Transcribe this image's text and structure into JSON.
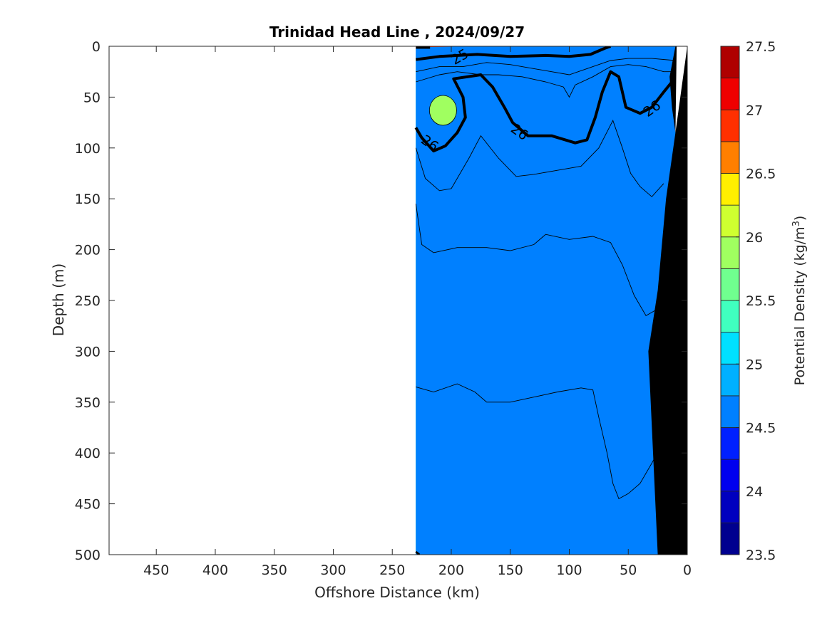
{
  "chart_data": {
    "type": "heatmap",
    "subtype": "filled-contour section",
    "title": "Trinidad Head Line , 2024/09/27",
    "xlabel": "Offshore Distance (km)",
    "ylabel": "Depth (m)",
    "xlim": [
      490,
      0
    ],
    "ylim": [
      0,
      500
    ],
    "x_direction": "reversed",
    "y_direction": "reversed",
    "x_ticks": [
      "450",
      "400",
      "350",
      "300",
      "250",
      "200",
      "150",
      "100",
      "50",
      "0"
    ],
    "y_ticks": [
      "0",
      "50",
      "100",
      "150",
      "200",
      "250",
      "300",
      "350",
      "400",
      "450",
      "500"
    ],
    "colorbar": {
      "label": "Potential Density (kg/m³)",
      "label_main": "Potential Density (kg/m",
      "label_sup": "3",
      "label_end": ")",
      "range": [
        23.5,
        27.5
      ],
      "step": 0.25,
      "ticks": [
        "27.5",
        "27",
        "26.5",
        "26",
        "25.5",
        "25",
        "24.5",
        "24",
        "23.5"
      ],
      "colormap": "jet",
      "colors": [
        "#00008f",
        "#0000bf",
        "#0000ef",
        "#0020ff",
        "#0050ff",
        "#0080ff",
        "#00b0ff",
        "#00e0ff",
        "#40ffbf",
        "#70ff8f",
        "#a0ff60",
        "#cfff30",
        "#ffef00",
        "#ffaf00",
        "#ff7f00",
        "#ff3000",
        "#ef0000",
        "#af0000"
      ]
    },
    "data_extent_km": [
      230,
      0
    ],
    "layers": [
      {
        "level": 27.0,
        "color": "#ff3000",
        "top_depth": [
          [
            230,
            335
          ],
          [
            215,
            340
          ],
          [
            195,
            332
          ],
          [
            180,
            340
          ],
          [
            170,
            350
          ],
          [
            150,
            350
          ],
          [
            130,
            345
          ],
          [
            110,
            340
          ],
          [
            90,
            336
          ],
          [
            80,
            338
          ],
          [
            75,
            365
          ],
          [
            68,
            400
          ],
          [
            63,
            430
          ],
          [
            58,
            445
          ],
          [
            50,
            440
          ],
          [
            40,
            430
          ],
          [
            30,
            410
          ],
          [
            23,
            395
          ]
        ]
      },
      {
        "level": 26.75,
        "color": "#ff7f00",
        "top_depth": [
          [
            230,
            155
          ],
          [
            225,
            195
          ],
          [
            215,
            203
          ],
          [
            195,
            198
          ],
          [
            170,
            198
          ],
          [
            150,
            201
          ],
          [
            130,
            195
          ],
          [
            120,
            185
          ],
          [
            100,
            190
          ],
          [
            80,
            187
          ],
          [
            65,
            193
          ],
          [
            55,
            215
          ],
          [
            45,
            245
          ],
          [
            35,
            265
          ],
          [
            20,
            255
          ]
        ]
      },
      {
        "level": 26.5,
        "color": "#ffaf00",
        "top_depth": [
          [
            230,
            100
          ],
          [
            222,
            130
          ],
          [
            210,
            142
          ],
          [
            200,
            140
          ],
          [
            185,
            110
          ],
          [
            175,
            88
          ],
          [
            160,
            110
          ],
          [
            145,
            128
          ],
          [
            130,
            126
          ],
          [
            110,
            122
          ],
          [
            90,
            118
          ],
          [
            75,
            100
          ],
          [
            63,
            73
          ],
          [
            55,
            100
          ],
          [
            48,
            125
          ],
          [
            40,
            138
          ],
          [
            30,
            148
          ],
          [
            20,
            135
          ]
        ]
      },
      {
        "level": 26.25,
        "color": "#ffef00",
        "top_depth": [
          [
            230,
            70
          ],
          [
            215,
            45
          ],
          [
            200,
            30
          ],
          [
            185,
            35
          ],
          [
            170,
            45
          ],
          [
            150,
            70
          ],
          [
            125,
            80
          ],
          [
            100,
            80
          ],
          [
            80,
            75
          ],
          [
            70,
            38
          ],
          [
            62,
            28
          ],
          [
            55,
            45
          ],
          [
            45,
            60
          ],
          [
            35,
            55
          ],
          [
            20,
            40
          ]
        ]
      },
      {
        "level": 26.0,
        "color": "#cfff30",
        "top_depth": [
          [
            230,
            35
          ],
          [
            210,
            28
          ],
          [
            195,
            25
          ],
          [
            175,
            28
          ],
          [
            160,
            28
          ],
          [
            140,
            30
          ],
          [
            120,
            35
          ],
          [
            105,
            40
          ],
          [
            100,
            50
          ],
          [
            95,
            38
          ],
          [
            80,
            30
          ],
          [
            65,
            20
          ],
          [
            50,
            18
          ],
          [
            35,
            20
          ],
          [
            20,
            25
          ],
          [
            10,
            25
          ]
        ]
      },
      {
        "level": 25.75,
        "color": "#a0ff60",
        "top_depth": [
          [
            230,
            25
          ],
          [
            210,
            20
          ],
          [
            190,
            20
          ],
          [
            170,
            16
          ],
          [
            150,
            18
          ],
          [
            130,
            22
          ],
          [
            115,
            25
          ],
          [
            100,
            28
          ],
          [
            85,
            22
          ],
          [
            65,
            14
          ],
          [
            50,
            12
          ],
          [
            30,
            12
          ],
          [
            10,
            14
          ]
        ]
      },
      {
        "level": 25.5,
        "color": "#70ff8f",
        "top_depth": [
          [
            230,
            18
          ],
          [
            200,
            14
          ],
          [
            180,
            11
          ],
          [
            150,
            13
          ],
          [
            120,
            16
          ],
          [
            100,
            18
          ],
          [
            80,
            14
          ],
          [
            60,
            8
          ],
          [
            40,
            5
          ],
          [
            20,
            6
          ],
          [
            10,
            8
          ]
        ]
      },
      {
        "level": 25.25,
        "color": "#40ffbf",
        "top_depth": [
          [
            230,
            12
          ],
          [
            200,
            9
          ],
          [
            170,
            7
          ],
          [
            140,
            8
          ],
          [
            110,
            10
          ],
          [
            90,
            9
          ],
          [
            70,
            4
          ],
          [
            55,
            0
          ],
          [
            10,
            0
          ]
        ]
      },
      {
        "level": 25.0,
        "color": "#00e0ff",
        "top_depth": [
          [
            230,
            7
          ],
          [
            200,
            5
          ],
          [
            170,
            4
          ],
          [
            140,
            5
          ],
          [
            110,
            5
          ],
          [
            90,
            4
          ],
          [
            70,
            1
          ],
          [
            60,
            0
          ]
        ]
      },
      {
        "level": 24.75,
        "color": "#00b0ff",
        "top_depth": [
          [
            230,
            3
          ],
          [
            200,
            2
          ],
          [
            160,
            1
          ],
          [
            120,
            2
          ],
          [
            90,
            1
          ],
          [
            75,
            0
          ]
        ]
      },
      {
        "level": 24.5,
        "color": "#0080ff",
        "top_depth": [
          [
            230,
            1
          ],
          [
            180,
            0
          ],
          [
            130,
            0
          ],
          [
            100,
            0
          ]
        ]
      }
    ],
    "green_pocket": {
      "level": 25.75,
      "color": "#a0ff60",
      "center_km": 207,
      "center_depth": 63
    },
    "contour_lines_thin": [
      [
        [
          230,
          155
        ],
        [
          225,
          195
        ],
        [
          215,
          203
        ],
        [
          195,
          198
        ],
        [
          170,
          198
        ],
        [
          150,
          201
        ],
        [
          130,
          195
        ],
        [
          120,
          185
        ],
        [
          100,
          190
        ],
        [
          80,
          187
        ],
        [
          65,
          193
        ],
        [
          55,
          215
        ],
        [
          45,
          245
        ],
        [
          35,
          265
        ],
        [
          20,
          255
        ]
      ],
      [
        [
          230,
          335
        ],
        [
          215,
          340
        ],
        [
          195,
          332
        ],
        [
          180,
          340
        ],
        [
          170,
          350
        ],
        [
          150,
          350
        ],
        [
          130,
          345
        ],
        [
          110,
          340
        ],
        [
          90,
          336
        ],
        [
          80,
          338
        ],
        [
          75,
          365
        ],
        [
          68,
          400
        ],
        [
          63,
          430
        ],
        [
          58,
          445
        ],
        [
          50,
          440
        ],
        [
          40,
          430
        ],
        [
          30,
          410
        ],
        [
          23,
          395
        ]
      ],
      [
        [
          230,
          100
        ],
        [
          222,
          130
        ],
        [
          210,
          142
        ],
        [
          200,
          140
        ],
        [
          185,
          110
        ],
        [
          175,
          88
        ],
        [
          160,
          110
        ],
        [
          145,
          128
        ],
        [
          130,
          126
        ],
        [
          110,
          122
        ],
        [
          90,
          118
        ],
        [
          75,
          100
        ],
        [
          63,
          73
        ],
        [
          55,
          100
        ],
        [
          48,
          125
        ],
        [
          40,
          138
        ],
        [
          30,
          148
        ],
        [
          20,
          135
        ]
      ],
      [
        [
          230,
          25
        ],
        [
          210,
          20
        ],
        [
          190,
          20
        ],
        [
          170,
          16
        ],
        [
          150,
          18
        ],
        [
          130,
          22
        ],
        [
          115,
          25
        ],
        [
          100,
          28
        ],
        [
          85,
          22
        ],
        [
          65,
          14
        ],
        [
          50,
          12
        ],
        [
          30,
          12
        ],
        [
          10,
          14
        ]
      ],
      [
        [
          230,
          35
        ],
        [
          210,
          28
        ],
        [
          195,
          25
        ],
        [
          175,
          28
        ],
        [
          160,
          28
        ],
        [
          140,
          30
        ],
        [
          120,
          35
        ],
        [
          105,
          40
        ],
        [
          100,
          50
        ],
        [
          95,
          38
        ],
        [
          80,
          30
        ],
        [
          65,
          20
        ],
        [
          50,
          18
        ],
        [
          35,
          20
        ],
        [
          20,
          25
        ],
        [
          10,
          25
        ]
      ]
    ],
    "contour_lines_bold": [
      {
        "label": "26",
        "points": [
          [
            230,
            80
          ],
          [
            225,
            90
          ],
          [
            215,
            103
          ],
          [
            205,
            98
          ],
          [
            195,
            85
          ],
          [
            188,
            70
          ],
          [
            190,
            50
          ],
          [
            198,
            32
          ],
          [
            175,
            28
          ],
          [
            165,
            40
          ],
          [
            155,
            60
          ],
          [
            148,
            75
          ],
          [
            135,
            88
          ],
          [
            115,
            88
          ],
          [
            95,
            95
          ],
          [
            85,
            92
          ],
          [
            78,
            70
          ],
          [
            72,
            45
          ],
          [
            65,
            25
          ],
          [
            58,
            30
          ],
          [
            55,
            45
          ],
          [
            52,
            60
          ],
          [
            40,
            66
          ],
          [
            30,
            60
          ],
          [
            20,
            45
          ],
          [
            13,
            35
          ]
        ]
      },
      {
        "label": "25",
        "points": [
          [
            230,
            13
          ],
          [
            210,
            10
          ],
          [
            178,
            8
          ],
          [
            150,
            10
          ],
          [
            120,
            9
          ],
          [
            100,
            10
          ],
          [
            82,
            8
          ],
          [
            70,
            2
          ],
          [
            65,
            0
          ]
        ]
      }
    ],
    "contour_labels": [
      {
        "text": "26",
        "x_km": 218,
        "depth": 95,
        "angle": 35
      },
      {
        "text": "26",
        "x_km": 142,
        "depth": 84,
        "angle": 35
      },
      {
        "text": "26",
        "x_km": 30,
        "depth": 61,
        "angle": -35
      },
      {
        "text": "25",
        "x_km": 193,
        "depth": 10,
        "angle": -30
      }
    ],
    "bathymetry": {
      "color": "#000000",
      "profile": [
        [
          10,
          0
        ],
        [
          15,
          30
        ],
        [
          13,
          60
        ],
        [
          10,
          85
        ],
        [
          18,
          150
        ],
        [
          25,
          240
        ],
        [
          33,
          300
        ],
        [
          29,
          400
        ],
        [
          25,
          500
        ]
      ]
    }
  }
}
